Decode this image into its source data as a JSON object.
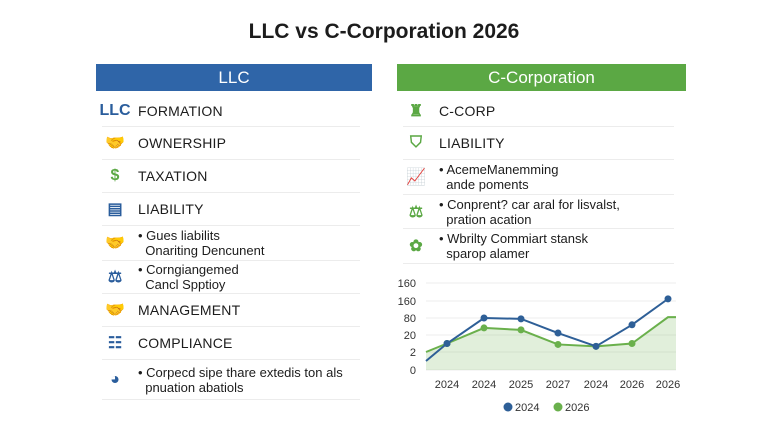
{
  "title": "LLC vs C-Corporation 2026",
  "left": {
    "header": "LLC",
    "rows": [
      {
        "icon": "llc-logo-icon",
        "glyph": "LLC",
        "label": "FORMATION",
        "bold": true
      },
      {
        "icon": "handshake-icon",
        "glyph": "🤝",
        "label": "OWNERSHIP",
        "bold": true
      },
      {
        "icon": "money-stack-icon",
        "glyph": "$",
        "label": "TAXATION",
        "bold": true
      },
      {
        "icon": "document-hand-icon",
        "glyph": "▤",
        "label": "LIABILITY",
        "bold": true
      },
      {
        "icon": "handshake-icon",
        "glyph": "🤝",
        "label": "• Gues liabilits\n  Onariting Dencunent",
        "bold": false
      },
      {
        "icon": "scales-person-icon",
        "glyph": "⚖",
        "label": "• Corngiangemed\n  Cancl Spptioy",
        "bold": false
      },
      {
        "icon": "handshake-icon",
        "glyph": "🤝",
        "label": "MANAGEMENT",
        "bold": true
      },
      {
        "icon": "people-group-icon",
        "glyph": "☷",
        "label": "COMPLIANCE",
        "bold": true
      },
      {
        "icon": "circular-arrow-icon",
        "glyph": "◕",
        "label": "• Corpecd sipe thare extedis ton als\n  pnuation abatiols",
        "bold": false
      }
    ]
  },
  "right": {
    "header": "C-Corporation",
    "rows": [
      {
        "icon": "building-icon",
        "glyph": "♜",
        "label": "C-CORP",
        "bold": true
      },
      {
        "icon": "shield-icon",
        "glyph": "⛉",
        "label": "LIABILITY",
        "bold": true
      },
      {
        "icon": "growth-chart-icon",
        "glyph": "📈",
        "label": "• AcemeManemming\n  ande poments",
        "bold": false
      },
      {
        "icon": "scales-icon",
        "glyph": "⚖",
        "label": "• Conprent? car aral for lisvalst,\n  pration acation",
        "bold": false
      },
      {
        "icon": "cluster-icon",
        "glyph": "✿",
        "label": "• Wbrilty Commiart stansk\n  sparop alamer",
        "bold": false
      }
    ]
  },
  "colors": {
    "llc": "#2f65a8",
    "ccorp": "#5ba844",
    "series_blue": "#2e5f97",
    "series_green": "#6ab04c"
  },
  "chart_data": {
    "type": "line",
    "categories": [
      "2024",
      "2024",
      "2025",
      "2027",
      "2024",
      "2026",
      "2026"
    ],
    "yticks": [
      "0",
      "2",
      "20",
      "80",
      "160",
      "160"
    ],
    "grid": true,
    "legend": "bottom",
    "series": [
      {
        "name": "2024",
        "color": "#2e5f97",
        "start": 1,
        "values": [
          11,
          80,
          77,
          27,
          8,
          56,
          170
        ]
      },
      {
        "name": "2026",
        "color": "#6ab04c",
        "start": 2,
        "values": [
          11,
          45,
          38,
          10,
          8,
          11,
          84
        ],
        "end": 84,
        "area": true
      }
    ]
  }
}
